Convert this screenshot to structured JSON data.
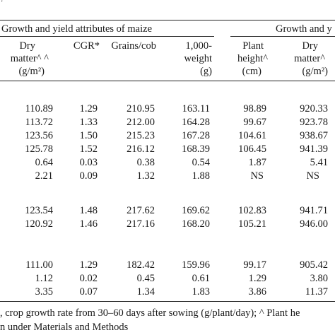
{
  "table": {
    "top_mark": "'",
    "group_headers": {
      "maize": "Growth and yield attributes of maize",
      "second": "Growth and y"
    },
    "columns": {
      "dry_matter": [
        "Dry",
        "matter^ ^",
        "(g/m²)"
      ],
      "cgr": [
        "CGR*"
      ],
      "grains_cob": [
        "Grains/cob"
      ],
      "weight_1000": [
        "1,000-",
        "weight",
        "(g)"
      ],
      "plant_height": [
        "Plant",
        "height^",
        "(cm)"
      ],
      "dry_matter_2": [
        "Dry",
        "matter^",
        "(g/m²)"
      ]
    },
    "groups": [
      {
        "rows": [
          [
            "110.89",
            "1.29",
            "210.95",
            "163.11",
            "98.89",
            "920.33"
          ],
          [
            "113.72",
            "1.33",
            "212.00",
            "164.28",
            "99.67",
            "923.78"
          ],
          [
            "123.56",
            "1.50",
            "215.23",
            "167.28",
            "104.61",
            "938.67"
          ],
          [
            "125.78",
            "1.52",
            "216.12",
            "168.39",
            "106.45",
            "941.39"
          ],
          [
            "0.64",
            "0.03",
            "0.38",
            "0.54",
            "1.87",
            "5.41"
          ],
          [
            "2.21",
            "0.09",
            "1.32",
            "1.88",
            "NS",
            "NS"
          ]
        ]
      },
      {
        "rows": [
          [
            "123.54",
            "1.48",
            "217.62",
            "169.62",
            "102.83",
            "941.71"
          ],
          [
            "120.92",
            "1.46",
            "217.16",
            "168.20",
            "105.21",
            "946.00"
          ]
        ]
      },
      {
        "rows": [
          [
            "111.00",
            "1.29",
            "182.42",
            "159.96",
            "99.17",
            "905.42"
          ],
          [
            "1.12",
            "0.02",
            "0.45",
            "0.61",
            "1.29",
            "3.80"
          ],
          [
            "3.35",
            "0.07",
            "1.34",
            "1.83",
            "3.86",
            "11.37"
          ]
        ]
      }
    ],
    "footnotes": [
      ", crop growth rate from 30–60 days after sowing (g/plant/day); ^ Plant he",
      "n under Materials and Methods"
    ]
  }
}
